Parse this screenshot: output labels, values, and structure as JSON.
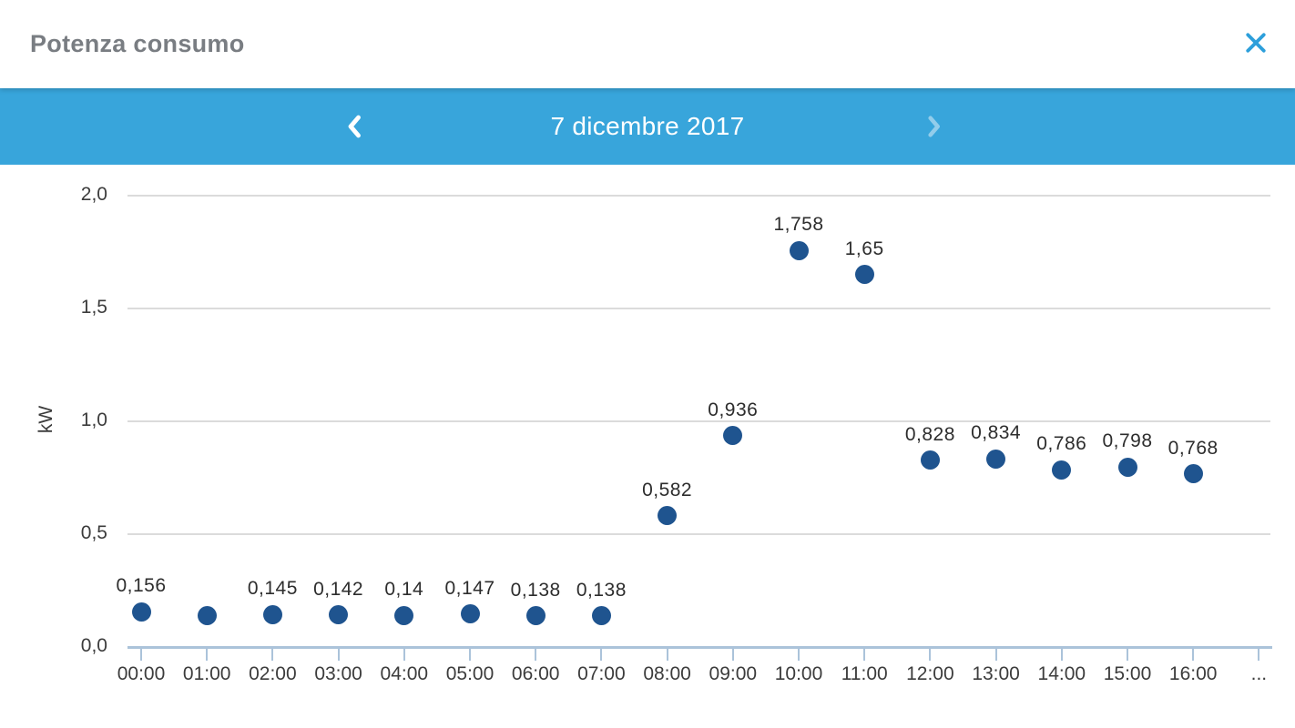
{
  "dialog": {
    "title": "Potenza consumo"
  },
  "icons": {
    "close_icon": "✕",
    "chevron_left_icon": "❮",
    "chevron_right_icon": "❯"
  },
  "date_nav": {
    "date_label": "7 dicembre 2017"
  },
  "colors": {
    "toolbar_blue": "#38A5DB",
    "close_blue": "#2D9FDB",
    "point_navy": "#1F548F",
    "axis_blue": "#ABC3DA",
    "grid_gray": "#DBDBDB",
    "title_gray": "#797D82",
    "tick_text": "#3C3C3C"
  },
  "chart_data": {
    "type": "scatter",
    "title": "Potenza consumo",
    "date": "7 dicembre 2017",
    "xlabel": "",
    "ylabel": "kW",
    "ylim": [
      0,
      2.0
    ],
    "grid": "horizontal",
    "legend": "none",
    "yticks": [
      {
        "value": 0.0,
        "label": "0,0"
      },
      {
        "value": 0.5,
        "label": "0,5"
      },
      {
        "value": 1.0,
        "label": "1,0"
      },
      {
        "value": 1.5,
        "label": "1,5"
      },
      {
        "value": 2.0,
        "label": "2,0"
      }
    ],
    "x_categories": [
      "00:00",
      "01:00",
      "02:00",
      "03:00",
      "04:00",
      "05:00",
      "06:00",
      "07:00",
      "08:00",
      "09:00",
      "10:00",
      "11:00",
      "12:00",
      "13:00",
      "14:00",
      "15:00",
      "16:00",
      "..."
    ],
    "points": [
      {
        "time": "00:00",
        "value": 0.156,
        "label": "0,156"
      },
      {
        "time": "01:00",
        "value": 0.139,
        "label": ""
      },
      {
        "time": "02:00",
        "value": 0.145,
        "label": "0,145"
      },
      {
        "time": "03:00",
        "value": 0.142,
        "label": "0,142"
      },
      {
        "time": "04:00",
        "value": 0.14,
        "label": "0,14"
      },
      {
        "time": "05:00",
        "value": 0.147,
        "label": "0,147"
      },
      {
        "time": "06:00",
        "value": 0.138,
        "label": "0,138"
      },
      {
        "time": "07:00",
        "value": 0.138,
        "label": "0,138"
      },
      {
        "time": "08:00",
        "value": 0.582,
        "label": "0,582"
      },
      {
        "time": "09:00",
        "value": 0.936,
        "label": "0,936"
      },
      {
        "time": "10:00",
        "value": 1.758,
        "label": "1,758"
      },
      {
        "time": "11:00",
        "value": 1.65,
        "label": "1,65"
      },
      {
        "time": "12:00",
        "value": 0.828,
        "label": "0,828"
      },
      {
        "time": "13:00",
        "value": 0.834,
        "label": "0,834"
      },
      {
        "time": "14:00",
        "value": 0.786,
        "label": "0,786"
      },
      {
        "time": "15:00",
        "value": 0.798,
        "label": "0,798"
      },
      {
        "time": "16:00",
        "value": 0.768,
        "label": "0,768"
      }
    ]
  }
}
